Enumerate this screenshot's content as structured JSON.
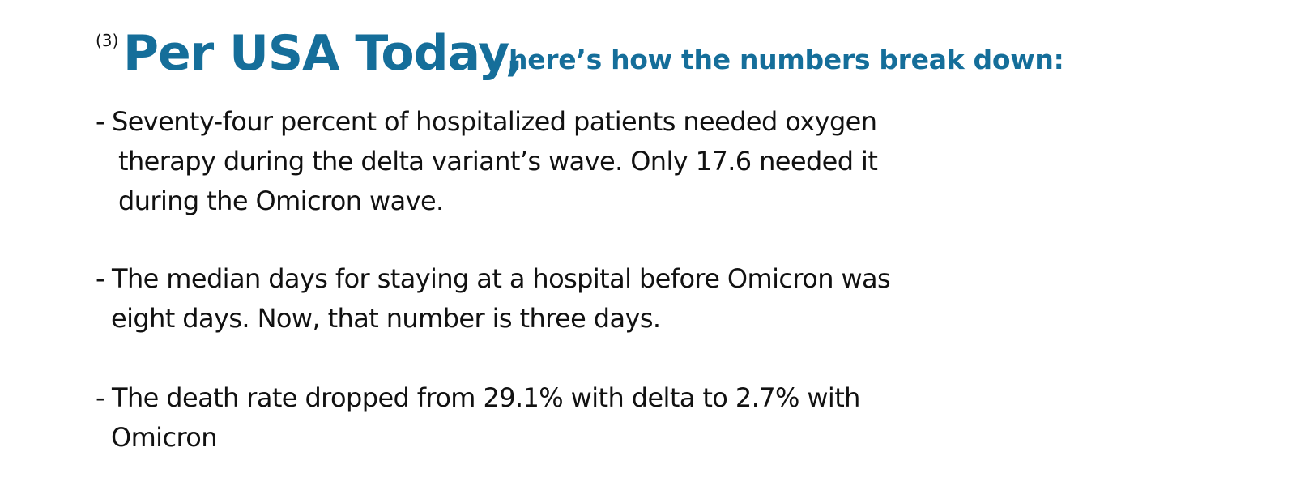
{
  "heading": {
    "reference": "(3)",
    "title": "Per USA Today,",
    "subtitle": "here’s how the numbers break down:"
  },
  "bullets": [
    {
      "marker": "-",
      "lines": [
        "Seventy-four percent of hospitalized patients needed oxygen",
        "therapy during the delta variant’s wave. Only 17.6 needed it",
        "during the Omicron wave."
      ]
    },
    {
      "marker": "-",
      "lines": [
        "The median days for staying at a hospital before Omicron was",
        "eight days. Now, that number is three days."
      ]
    },
    {
      "marker": "-",
      "lines": [
        "The death rate dropped from 29.1% with delta to 2.7% with",
        "Omicron"
      ]
    }
  ],
  "colors": {
    "heading": "#156e9a",
    "body_text": "#111111",
    "background": "#ffffff"
  }
}
